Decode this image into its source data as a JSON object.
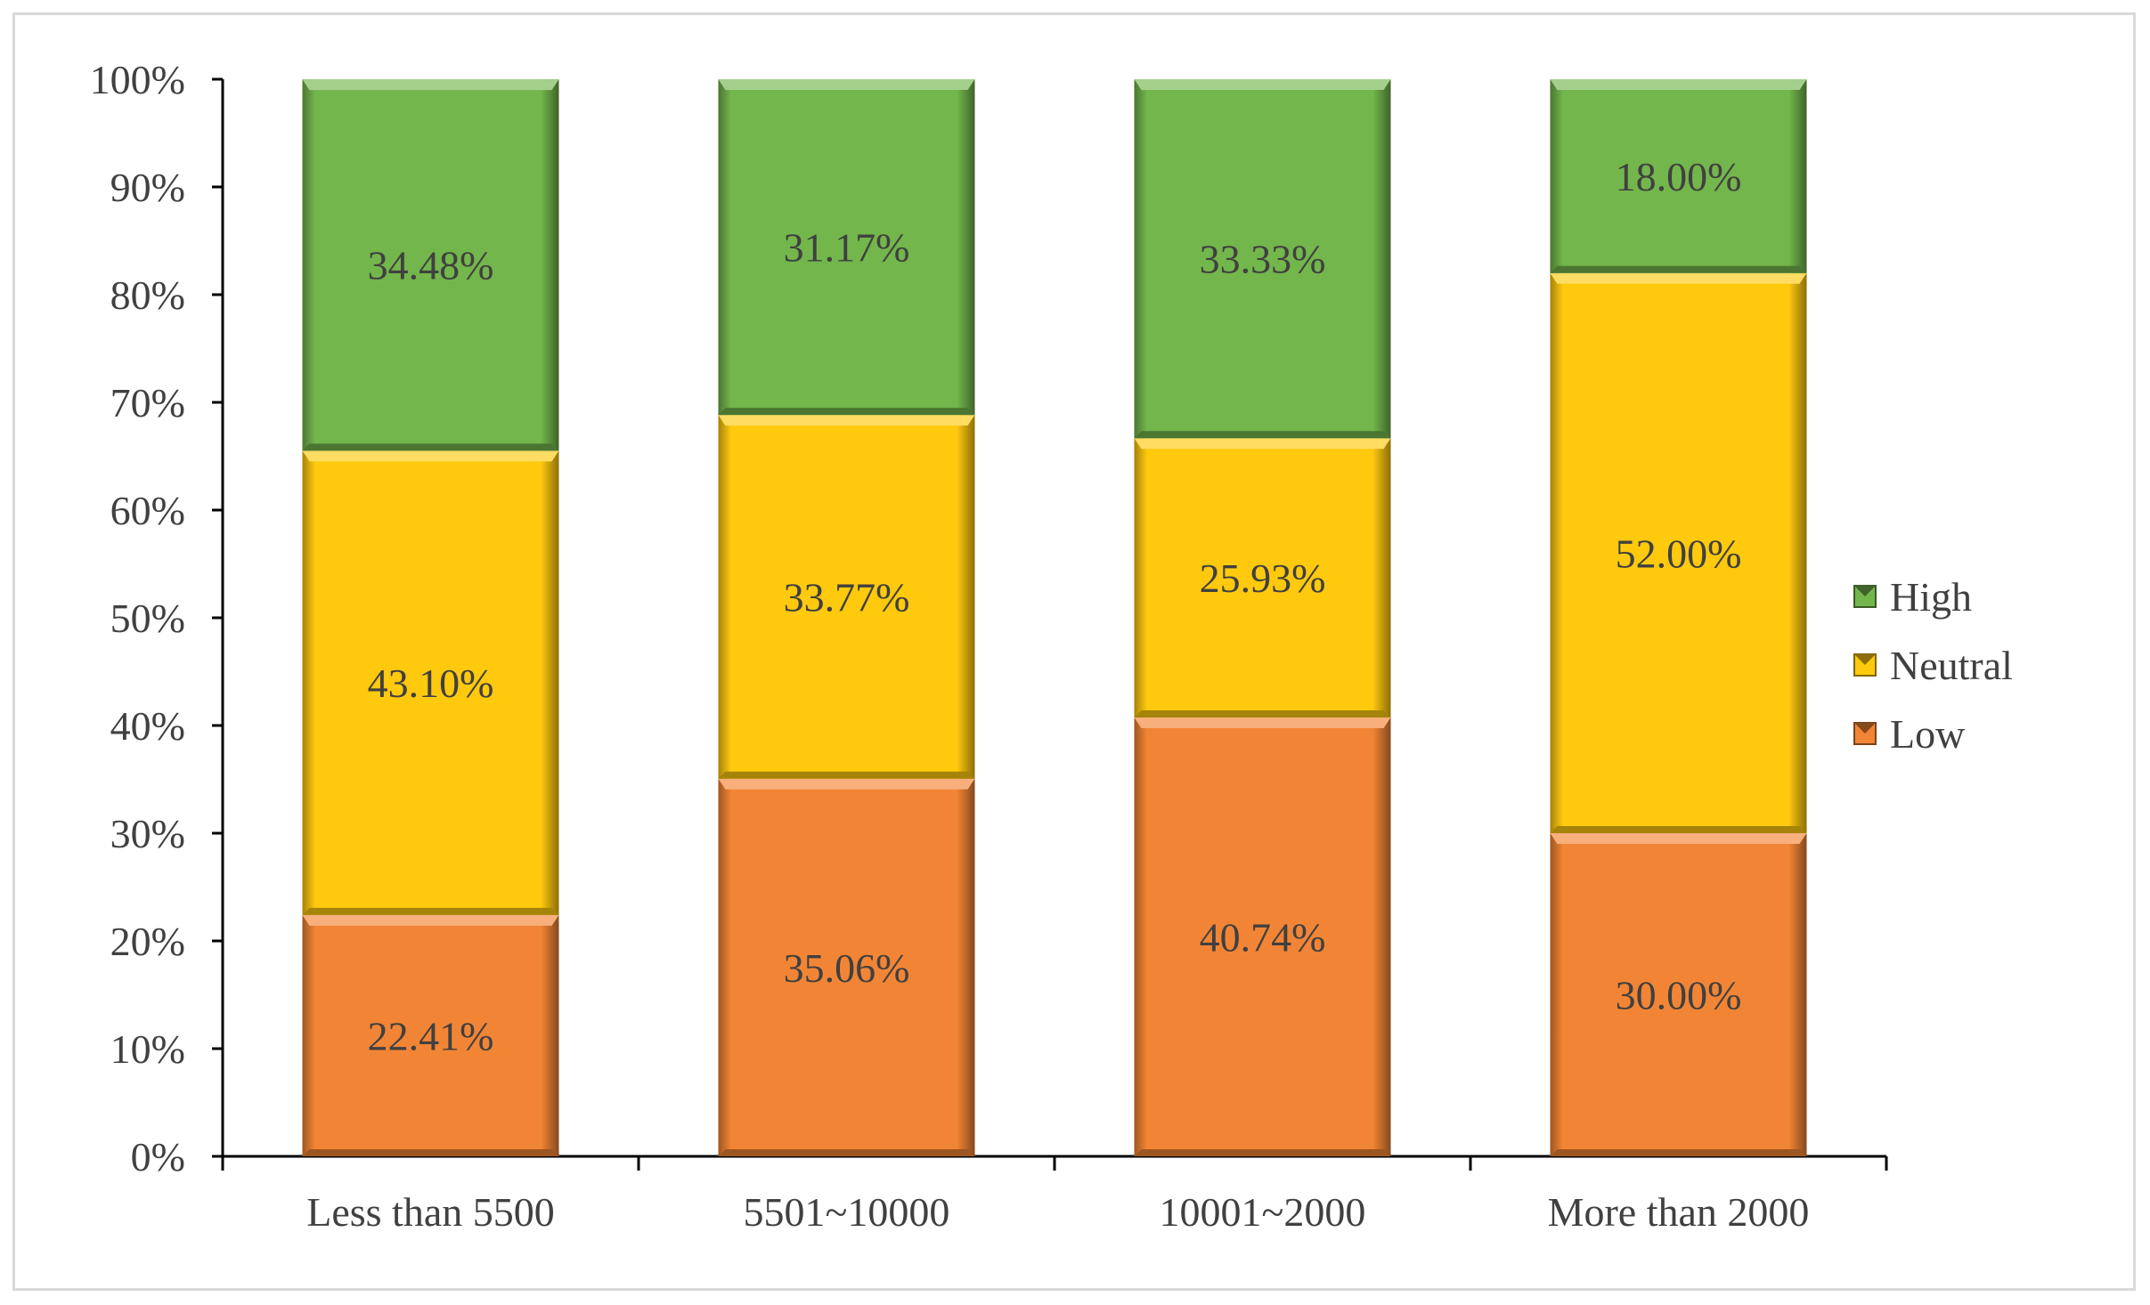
{
  "chart_data": {
    "type": "bar",
    "stacked": true,
    "percent_stacked": true,
    "categories": [
      "Less than 5500",
      "5501~10000",
      "10001~2000",
      "More than 2000"
    ],
    "series": [
      {
        "name": "Low",
        "color": "#f28535",
        "values": [
          22.41,
          35.06,
          40.74,
          30.0
        ],
        "labels": [
          "22.41%",
          "35.06%",
          "40.74%",
          "30.00%"
        ]
      },
      {
        "name": "Neutral",
        "color": "#ffc90e",
        "values": [
          43.1,
          33.77,
          25.93,
          52.0
        ],
        "labels": [
          "43.10%",
          "33.77%",
          "25.93%",
          "52.00%"
        ]
      },
      {
        "name": "High",
        "color": "#73b64c",
        "values": [
          34.48,
          31.17,
          33.33,
          18.0
        ],
        "labels": [
          "34.48%",
          "31.17%",
          "33.33%",
          "18.00%"
        ]
      }
    ],
    "ylim": [
      0,
      100
    ],
    "yticks": [
      "0%",
      "10%",
      "20%",
      "30%",
      "40%",
      "50%",
      "60%",
      "70%",
      "80%",
      "90%",
      "100%"
    ],
    "legend": {
      "position": "right",
      "order": [
        "High",
        "Neutral",
        "Low"
      ]
    },
    "title": "",
    "xlabel": "",
    "ylabel": ""
  }
}
